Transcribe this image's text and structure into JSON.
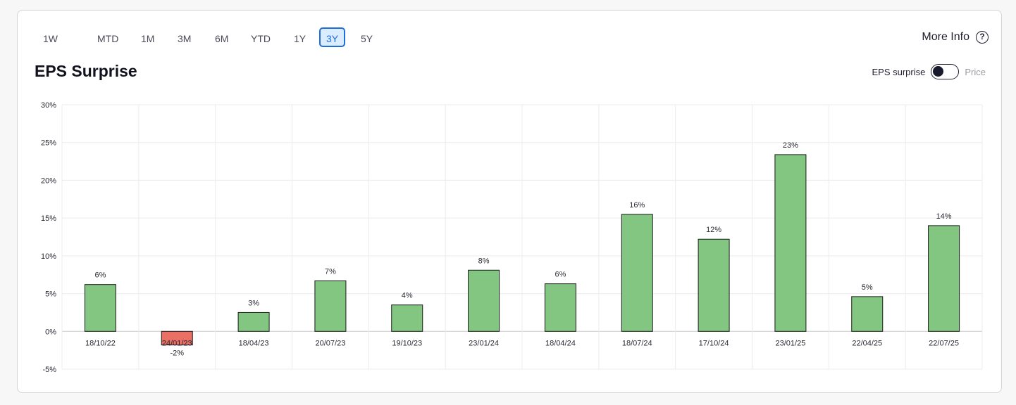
{
  "tabs": [
    {
      "label": "1W",
      "active": false
    },
    {
      "label": "MTD",
      "active": false
    },
    {
      "label": "1M",
      "active": false
    },
    {
      "label": "3M",
      "active": false
    },
    {
      "label": "6M",
      "active": false
    },
    {
      "label": "YTD",
      "active": false
    },
    {
      "label": "1Y",
      "active": false
    },
    {
      "label": "3Y",
      "active": true
    },
    {
      "label": "5Y",
      "active": false
    }
  ],
  "more_info": {
    "label": "More Info",
    "icon": "help-circle-icon"
  },
  "title": "EPS Surprise",
  "toggle": {
    "left_label": "EPS surprise",
    "right_label": "Price",
    "state": "EPS surprise"
  },
  "colors": {
    "positive": "#82c682",
    "negative": "#ea6f64",
    "accent": "#1e6ed8"
  },
  "chart_data": {
    "type": "bar",
    "title": "",
    "xlabel": "",
    "ylabel": "",
    "categories": [
      "18/10/22",
      "24/01/23",
      "18/04/23",
      "20/07/23",
      "19/10/23",
      "23/01/24",
      "18/04/24",
      "18/07/24",
      "17/10/24",
      "23/01/25",
      "22/04/25",
      "22/07/25"
    ],
    "values": [
      6.2,
      -1.8,
      2.5,
      6.7,
      3.5,
      8.1,
      6.3,
      15.5,
      12.2,
      23.4,
      4.6,
      14.0
    ],
    "data_labels": [
      "6%",
      "-2%",
      "3%",
      "7%",
      "4%",
      "8%",
      "6%",
      "16%",
      "12%",
      "23%",
      "5%",
      "14%"
    ],
    "ylim": [
      -5,
      30
    ],
    "y_ticks": [
      30,
      25,
      20,
      15,
      10,
      5,
      0,
      -5
    ],
    "y_tick_labels": [
      "30%",
      "25%",
      "20%",
      "15%",
      "10%",
      "5%",
      "0%",
      "-5%"
    ],
    "grid": true,
    "legend": "none"
  }
}
